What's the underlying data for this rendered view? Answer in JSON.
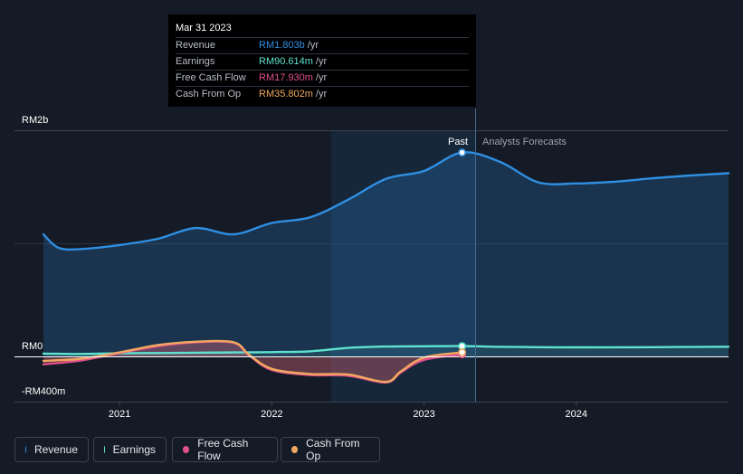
{
  "tooltip": {
    "date": "Mar 31 2023",
    "rows": [
      {
        "label": "Revenue",
        "value": "RM1.803b",
        "unit": "/yr",
        "color": "#2f8fe2"
      },
      {
        "label": "Earnings",
        "value": "RM90.614m",
        "unit": "/yr",
        "color": "#5fe3d0"
      },
      {
        "label": "Free Cash Flow",
        "value": "RM17.930m",
        "unit": "/yr",
        "color": "#e0508a"
      },
      {
        "label": "Cash From Op",
        "value": "RM35.802m",
        "unit": "/yr",
        "color": "#f0a860"
      }
    ]
  },
  "legend": [
    {
      "label": "Revenue",
      "color": "#2f8fe2"
    },
    {
      "label": "Earnings",
      "color": "#5fe3d0"
    },
    {
      "label": "Free Cash Flow",
      "color": "#e0508a"
    },
    {
      "label": "Cash From Op",
      "color": "#f0a860"
    }
  ],
  "chart_data": {
    "type": "line",
    "title": "",
    "ylabel": "",
    "y_tick_labels": [
      "RM2b",
      "RM0",
      "-RM400m"
    ],
    "y_ticks": [
      2000,
      0,
      -400
    ],
    "ylim": [
      -400,
      2000
    ],
    "xlim": [
      2020.5,
      2025.0
    ],
    "x_ticks": [
      2021,
      2022,
      2023,
      2024
    ],
    "x_tick_labels": [
      "2021",
      "2022",
      "2023",
      "2024"
    ],
    "past_label": "Past",
    "forecast_label": "Analysts Forecasts",
    "divider_x": 2023.25,
    "highlight_start_x": 2022.25,
    "series": [
      {
        "name": "Revenue",
        "color": "#2f8fe2",
        "x": [
          2020.5,
          2020.6,
          2020.75,
          2021.0,
          2021.25,
          2021.5,
          2021.75,
          2022.0,
          2022.25,
          2022.5,
          2022.75,
          2023.0,
          2023.25,
          2023.5,
          2023.75,
          2024.0,
          2024.25,
          2024.5,
          2024.75,
          2025.0
        ],
        "values": [
          1080,
          960,
          950,
          985,
          1040,
          1135,
          1080,
          1180,
          1230,
          1385,
          1570,
          1640,
          1803,
          1720,
          1540,
          1530,
          1545,
          1575,
          1600,
          1620
        ]
      },
      {
        "name": "Earnings",
        "color": "#5fe3d0",
        "x": [
          2020.5,
          2020.75,
          2021.0,
          2021.25,
          2021.5,
          2021.75,
          2022.0,
          2022.25,
          2022.5,
          2022.75,
          2023.0,
          2023.25,
          2023.5,
          2023.75,
          2024.0,
          2024.5,
          2025.0
        ],
        "values": [
          25,
          22,
          28,
          30,
          33,
          35,
          38,
          45,
          75,
          87,
          90,
          91,
          85,
          82,
          80,
          82,
          86
        ]
      },
      {
        "name": "Free Cash Flow",
        "color": "#e0508a",
        "x": [
          2020.5,
          2020.75,
          2021.0,
          2021.25,
          2021.5,
          2021.75,
          2021.85,
          2022.0,
          2022.25,
          2022.5,
          2022.75,
          2022.85,
          2023.0,
          2023.25
        ],
        "values": [
          -70,
          -35,
          30,
          90,
          125,
          120,
          10,
          -120,
          -165,
          -170,
          -230,
          -140,
          -30,
          18
        ]
      },
      {
        "name": "Cash From Op",
        "color": "#f0a860",
        "x": [
          2020.5,
          2020.75,
          2021.0,
          2021.25,
          2021.5,
          2021.75,
          2021.85,
          2022.0,
          2022.25,
          2022.5,
          2022.75,
          2022.85,
          2023.0,
          2023.25
        ],
        "values": [
          -40,
          -20,
          35,
          100,
          130,
          125,
          15,
          -110,
          -155,
          -160,
          -225,
          -130,
          -10,
          36
        ]
      }
    ]
  }
}
